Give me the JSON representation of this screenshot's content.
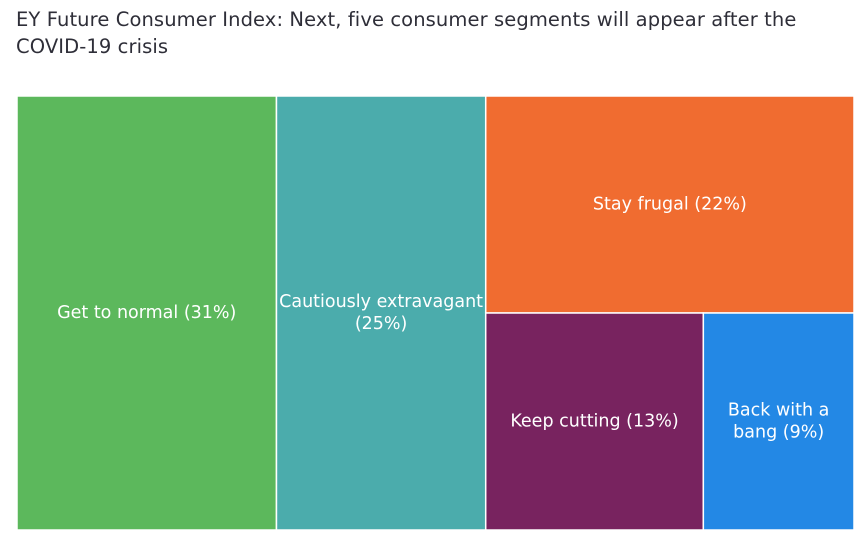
{
  "title": "EY Future Consumer Index: Next, five consumer segments will appear after the COVID-19 crisis",
  "chart_data": {
    "type": "treemap",
    "unit": "%",
    "items": [
      {
        "name": "Get to normal",
        "value": 31,
        "label_lines": [
          "Get to normal (31%)"
        ],
        "color": "#5cb85c"
      },
      {
        "name": "Cautiously extravagant",
        "value": 25,
        "label_lines": [
          "Cautiously extravagant",
          "(25%)"
        ],
        "color": "#4bacac"
      },
      {
        "name": "Stay frugal",
        "value": 22,
        "label_lines": [
          "Stay frugal (22%)"
        ],
        "color": "#f06c30"
      },
      {
        "name": "Keep cutting",
        "value": 13,
        "label_lines": [
          "Keep cutting (13%)"
        ],
        "color": "#78235f"
      },
      {
        "name": "Back with a bang",
        "value": 9,
        "label_lines": [
          "Back with a",
          "bang (9%)"
        ],
        "color": "#2388e5"
      }
    ]
  }
}
